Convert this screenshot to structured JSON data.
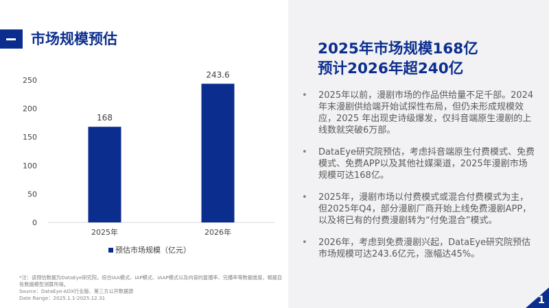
{
  "page": {
    "title": "市场规模预估",
    "page_number": "1",
    "accent_color": "#0b2e8e"
  },
  "headline": {
    "line1": "2025年市场规模168亿",
    "line2": "预计2026年超240亿"
  },
  "bullets": [
    "2025年以前，漫剧市场的作品供给量不足千部。2024年末漫剧供给端开始试探性布局，但仍未形成规模效应，2025 年出现史诗级爆发，仅抖音端原生漫剧的上线数就突破6万部。",
    "DataEye研究院预估，考虑抖音端原生付费模式、免费模式、免费APP以及其他社媒渠道，2025年漫剧市场规模可达168亿。",
    "2025年，漫剧市场以付费模式或混合付费模式为主，但2025年Q4，部分漫剧厂商开始上线免费漫剧APP，以及将已有的付费漫剧转为“付免混合”模式。",
    "2026年，考虑到免费漫剧兴起，DataEye研究院预估市场规模可达243.6亿元，涨幅达45%。"
  ],
  "footnote": {
    "line1": "*注：该预估数据为DataEye研究院，综合IAA模式、IAP模式、IAAP模式以及内容的复播率、完播率等数据维度，根据自有数据模型测算所得。",
    "line2": "Source：DataEye-ADX行业版、第三方公开数据源",
    "line3": "Date Range：2025.1.1-2025.12.31"
  },
  "chart_data": {
    "type": "bar",
    "categories": [
      "2025年",
      "2026年"
    ],
    "series": [
      {
        "name": "预估市场规模（亿元）",
        "values": [
          168,
          243.6
        ],
        "color": "#0b2e8e"
      }
    ],
    "data_labels": [
      "168",
      "243.6"
    ],
    "ylim": [
      0,
      250
    ],
    "yticks": [
      0,
      50,
      100,
      150,
      200,
      250
    ],
    "grid": false,
    "legend": "bottom"
  }
}
